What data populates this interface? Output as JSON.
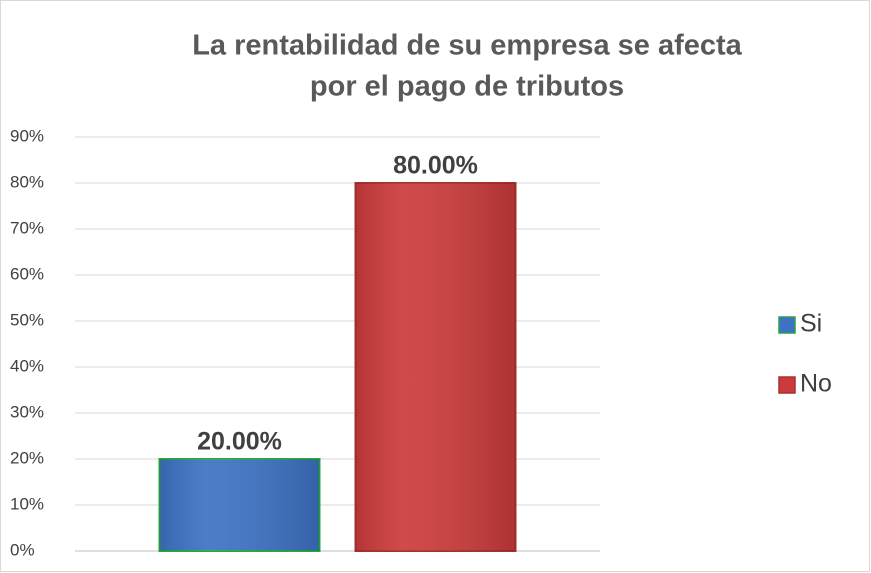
{
  "chart_data": {
    "type": "bar",
    "title": [
      "La rentabilidad de su empresa se afecta",
      "por el pago de tributos"
    ],
    "categories": [
      null
    ],
    "series": [
      {
        "name": "Si",
        "color": "#3d72c4",
        "edgecolor": "#27a348",
        "values": [
          20
        ],
        "value_labels": [
          "20.00%"
        ]
      },
      {
        "name": "No",
        "color": "#cc3b3b",
        "edgecolor": "#a83030",
        "values": [
          80
        ],
        "value_labels": [
          "80.00%"
        ]
      }
    ],
    "ylim": [
      0,
      90
    ],
    "yticks": [
      {
        "value": 0,
        "label": "0%"
      },
      {
        "value": 10,
        "label": "10%"
      },
      {
        "value": 20,
        "label": "20%"
      },
      {
        "value": 30,
        "label": "30%"
      },
      {
        "value": 40,
        "label": "40%"
      },
      {
        "value": 50,
        "label": "50%"
      },
      {
        "value": 60,
        "label": "60%"
      },
      {
        "value": 70,
        "label": "70%"
      },
      {
        "value": 80,
        "label": "80%"
      },
      {
        "value": 90,
        "label": "90%"
      }
    ],
    "grid": true,
    "legend": "right"
  }
}
